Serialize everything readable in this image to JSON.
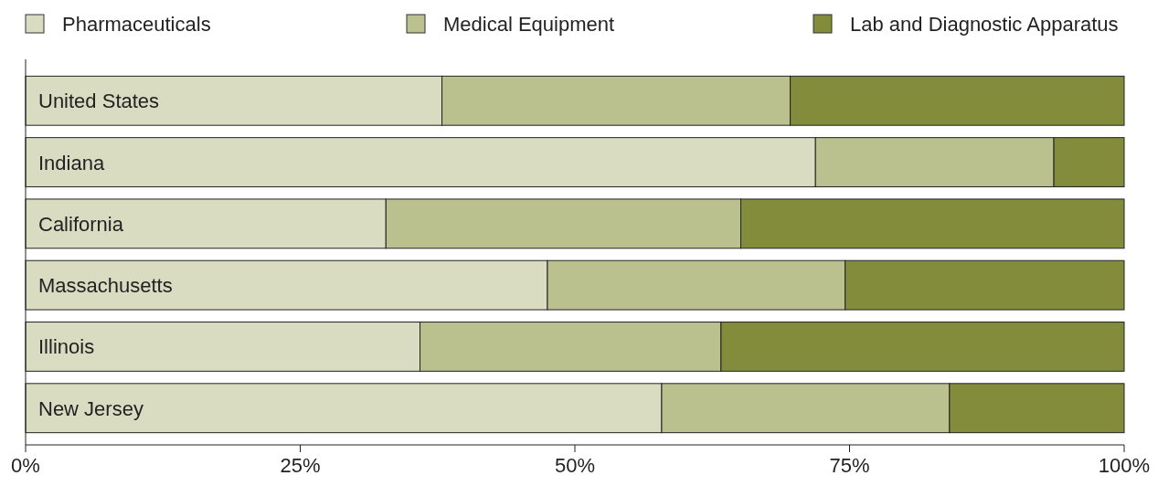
{
  "chart_data": {
    "type": "bar",
    "orientation": "horizontal",
    "stacked": true,
    "categories": [
      "United States",
      "Indiana",
      "California",
      "Massachusetts",
      "Illinois",
      "New Jersey"
    ],
    "series": [
      {
        "name": "Pharmaceuticals",
        "color": "#dadcc2",
        "values": [
          37.9,
          71.9,
          32.8,
          47.5,
          35.9,
          57.9
        ]
      },
      {
        "name": "Medical Equipment",
        "color": "#bbc08f",
        "values": [
          31.7,
          21.7,
          32.3,
          27.1,
          27.4,
          26.2
        ]
      },
      {
        "name": "Lab and Diagnostic Apparatus",
        "color": "#828c3a",
        "values": [
          30.4,
          6.4,
          34.9,
          25.4,
          36.7,
          15.9
        ]
      }
    ],
    "xlim": [
      0,
      100
    ],
    "xticks": [
      {
        "value": 0,
        "label": "0%"
      },
      {
        "value": 25,
        "label": "25%"
      },
      {
        "value": 50,
        "label": "50%"
      },
      {
        "value": 75,
        "label": "75%"
      },
      {
        "value": 100,
        "label": "100%"
      }
    ],
    "grid": false,
    "legend": "top"
  }
}
